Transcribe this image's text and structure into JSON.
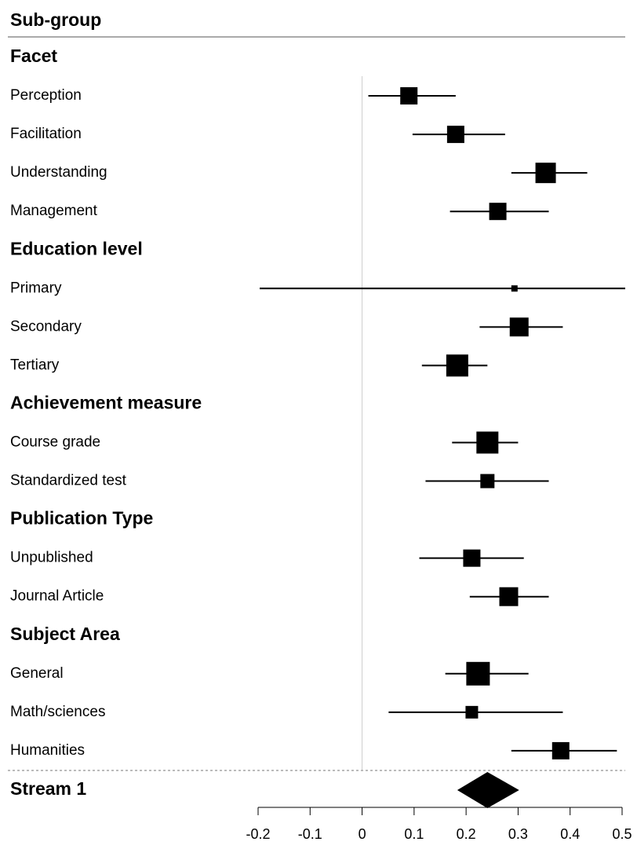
{
  "chart_data": {
    "type": "forest",
    "header": "Sub-group",
    "xlim": [
      -0.2,
      0.5
    ],
    "xticks": [
      -0.2,
      -0.1,
      0,
      0.1,
      0.2,
      0.3,
      0.4,
      0.5
    ],
    "reference_line": 0,
    "groups": [
      {
        "name": "Facet",
        "rows": [
          {
            "label": "Perception",
            "estimate": 0.09,
            "lower": 0.012,
            "upper": 0.18,
            "weight": 22
          },
          {
            "label": "Facilitation",
            "estimate": 0.18,
            "lower": 0.097,
            "upper": 0.275,
            "weight": 22
          },
          {
            "label": "Understanding",
            "estimate": 0.353,
            "lower": 0.287,
            "upper": 0.433,
            "weight": 26
          },
          {
            "label": "Management",
            "estimate": 0.261,
            "lower": 0.169,
            "upper": 0.359,
            "weight": 22
          }
        ]
      },
      {
        "name": "Education level",
        "rows": [
          {
            "label": "Primary",
            "estimate": 0.293,
            "lower": -0.197,
            "upper": 0.507,
            "weight": 8
          },
          {
            "label": "Secondary",
            "estimate": 0.302,
            "lower": 0.226,
            "upper": 0.386,
            "weight": 24
          },
          {
            "label": "Tertiary",
            "estimate": 0.183,
            "lower": 0.115,
            "upper": 0.241,
            "weight": 28
          }
        ]
      },
      {
        "name": "Achievement measure",
        "rows": [
          {
            "label": "Course grade",
            "estimate": 0.241,
            "lower": 0.173,
            "upper": 0.3,
            "weight": 28
          },
          {
            "label": "Standardized test",
            "estimate": 0.241,
            "lower": 0.122,
            "upper": 0.359,
            "weight": 18
          }
        ]
      },
      {
        "name": "Publication Type",
        "rows": [
          {
            "label": "Unpublished",
            "estimate": 0.211,
            "lower": 0.11,
            "upper": 0.311,
            "weight": 22
          },
          {
            "label": "Journal Article",
            "estimate": 0.282,
            "lower": 0.207,
            "upper": 0.359,
            "weight": 24
          }
        ]
      },
      {
        "name": "Subject Area",
        "rows": [
          {
            "label": "General",
            "estimate": 0.223,
            "lower": 0.16,
            "upper": 0.32,
            "weight": 30
          },
          {
            "label": "Math/sciences",
            "estimate": 0.211,
            "lower": 0.051,
            "upper": 0.386,
            "weight": 16
          },
          {
            "label": "Humanities",
            "estimate": 0.382,
            "lower": 0.287,
            "upper": 0.49,
            "weight": 22
          }
        ]
      }
    ],
    "summary": {
      "label": "Stream 1",
      "estimate": 0.241,
      "lower": 0.183,
      "upper": 0.302
    }
  }
}
